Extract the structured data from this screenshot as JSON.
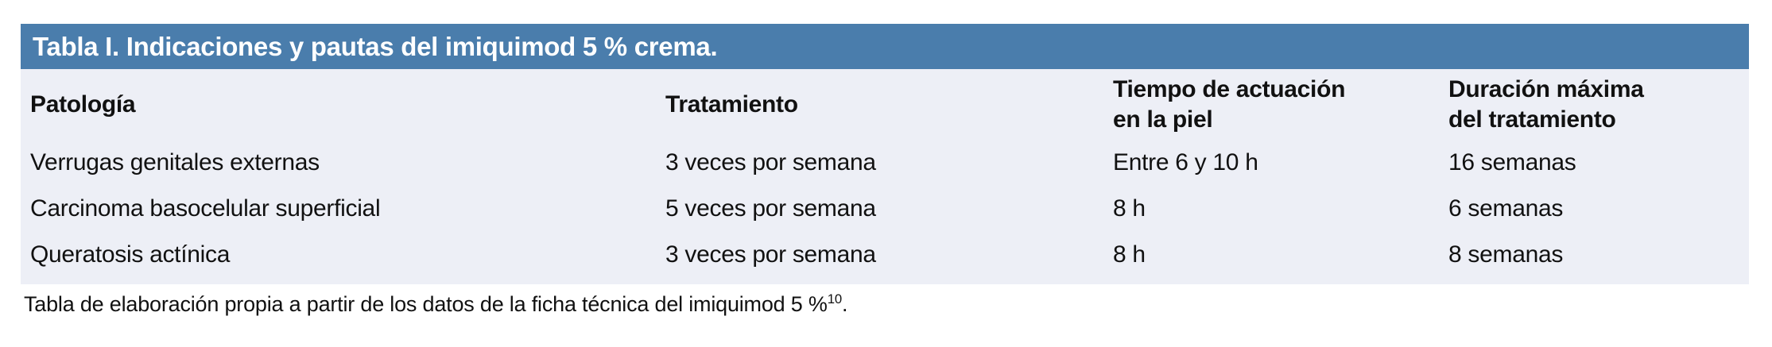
{
  "colors": {
    "title_bar_bg": "#4a7dac",
    "title_text": "#ffffff",
    "table_body_bg": "#edeff6",
    "body_text": "#111111",
    "page_bg": "#ffffff"
  },
  "table": {
    "title": "Tabla I. Indicaciones y pautas del imiquimod 5 % crema.",
    "columns": [
      {
        "lines": [
          "Patología"
        ]
      },
      {
        "lines": [
          "Tratamiento"
        ]
      },
      {
        "lines": [
          "Tiempo de actuación",
          "en la piel"
        ]
      },
      {
        "lines": [
          "Duración máxima",
          "del tratamiento"
        ]
      }
    ],
    "rows": [
      {
        "cells": [
          "Verrugas genitales externas",
          "3 veces por semana",
          "Entre 6 y 10 h",
          "16 semanas"
        ]
      },
      {
        "cells": [
          "Carcinoma basocelular superficial",
          "5 veces por semana",
          "8 h",
          "6 semanas"
        ]
      },
      {
        "cells": [
          "Queratosis actínica",
          "3 veces por semana",
          "8 h",
          "8 semanas"
        ]
      }
    ]
  },
  "footnote": {
    "text": "Tabla de elaboración propia a partir de los datos de la ficha técnica del imiquimod 5 %",
    "reference_superscript": "10",
    "suffix": "."
  }
}
